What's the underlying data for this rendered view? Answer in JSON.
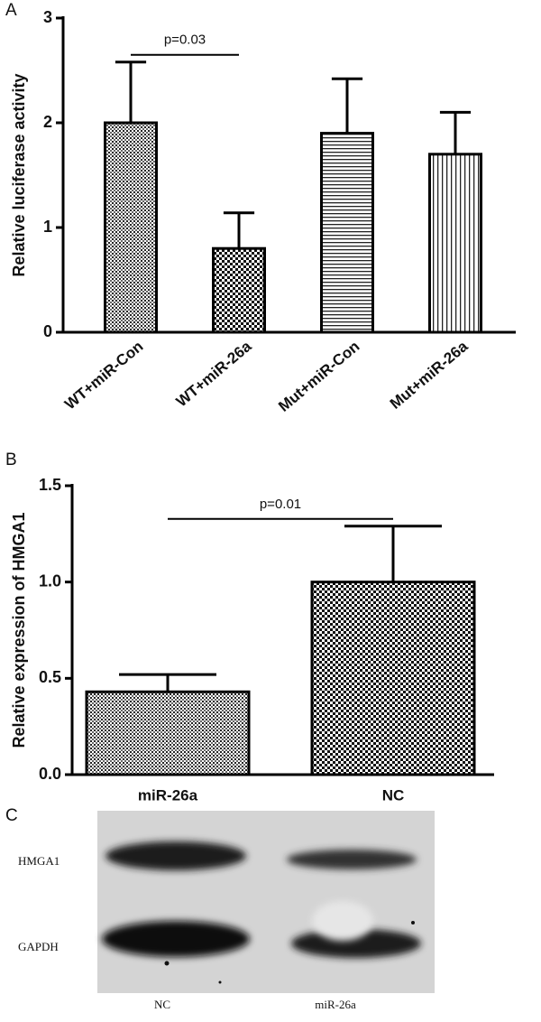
{
  "chart_data": [
    {
      "type": "bar",
      "panel": "A",
      "y_label": "Relative luciferase activity",
      "categories": [
        "WT+miR-Con",
        "WT+miR-26a",
        "Mut+miR-Con",
        "Mut+miR-26a"
      ],
      "values": [
        2.0,
        0.8,
        1.9,
        1.7
      ],
      "errors": [
        0.58,
        0.34,
        0.52,
        0.4
      ],
      "patterns": [
        "dots",
        "checker",
        "horizontal",
        "vertical"
      ],
      "color": "#000000",
      "ylim": [
        0,
        3
      ],
      "yticks": [
        0,
        1,
        2,
        3
      ],
      "annotation": {
        "text": "p=0.03",
        "between": [
          0,
          1
        ]
      }
    },
    {
      "type": "bar",
      "panel": "B",
      "y_label": "Relative expression of  HMGA1",
      "categories": [
        "miR-26a",
        "NC"
      ],
      "values": [
        0.43,
        1.0
      ],
      "errors": [
        0.09,
        0.29
      ],
      "patterns": [
        "dots",
        "checker"
      ],
      "color": "#000000",
      "ylim": [
        0,
        1.5
      ],
      "yticks": [
        {
          "value": 0,
          "label": "0.0"
        },
        {
          "value": 0.5,
          "label": "0.5"
        },
        {
          "value": 1,
          "label": "1.0"
        },
        {
          "value": 1.5,
          "label": "1.5"
        }
      ],
      "annotation": {
        "text": "p=0.01",
        "between": [
          0,
          1
        ]
      }
    }
  ],
  "blot": {
    "panel": "C",
    "rows": [
      "HMGA1",
      "GAPDH"
    ],
    "lanes": [
      "NC",
      "miR-26a"
    ]
  }
}
